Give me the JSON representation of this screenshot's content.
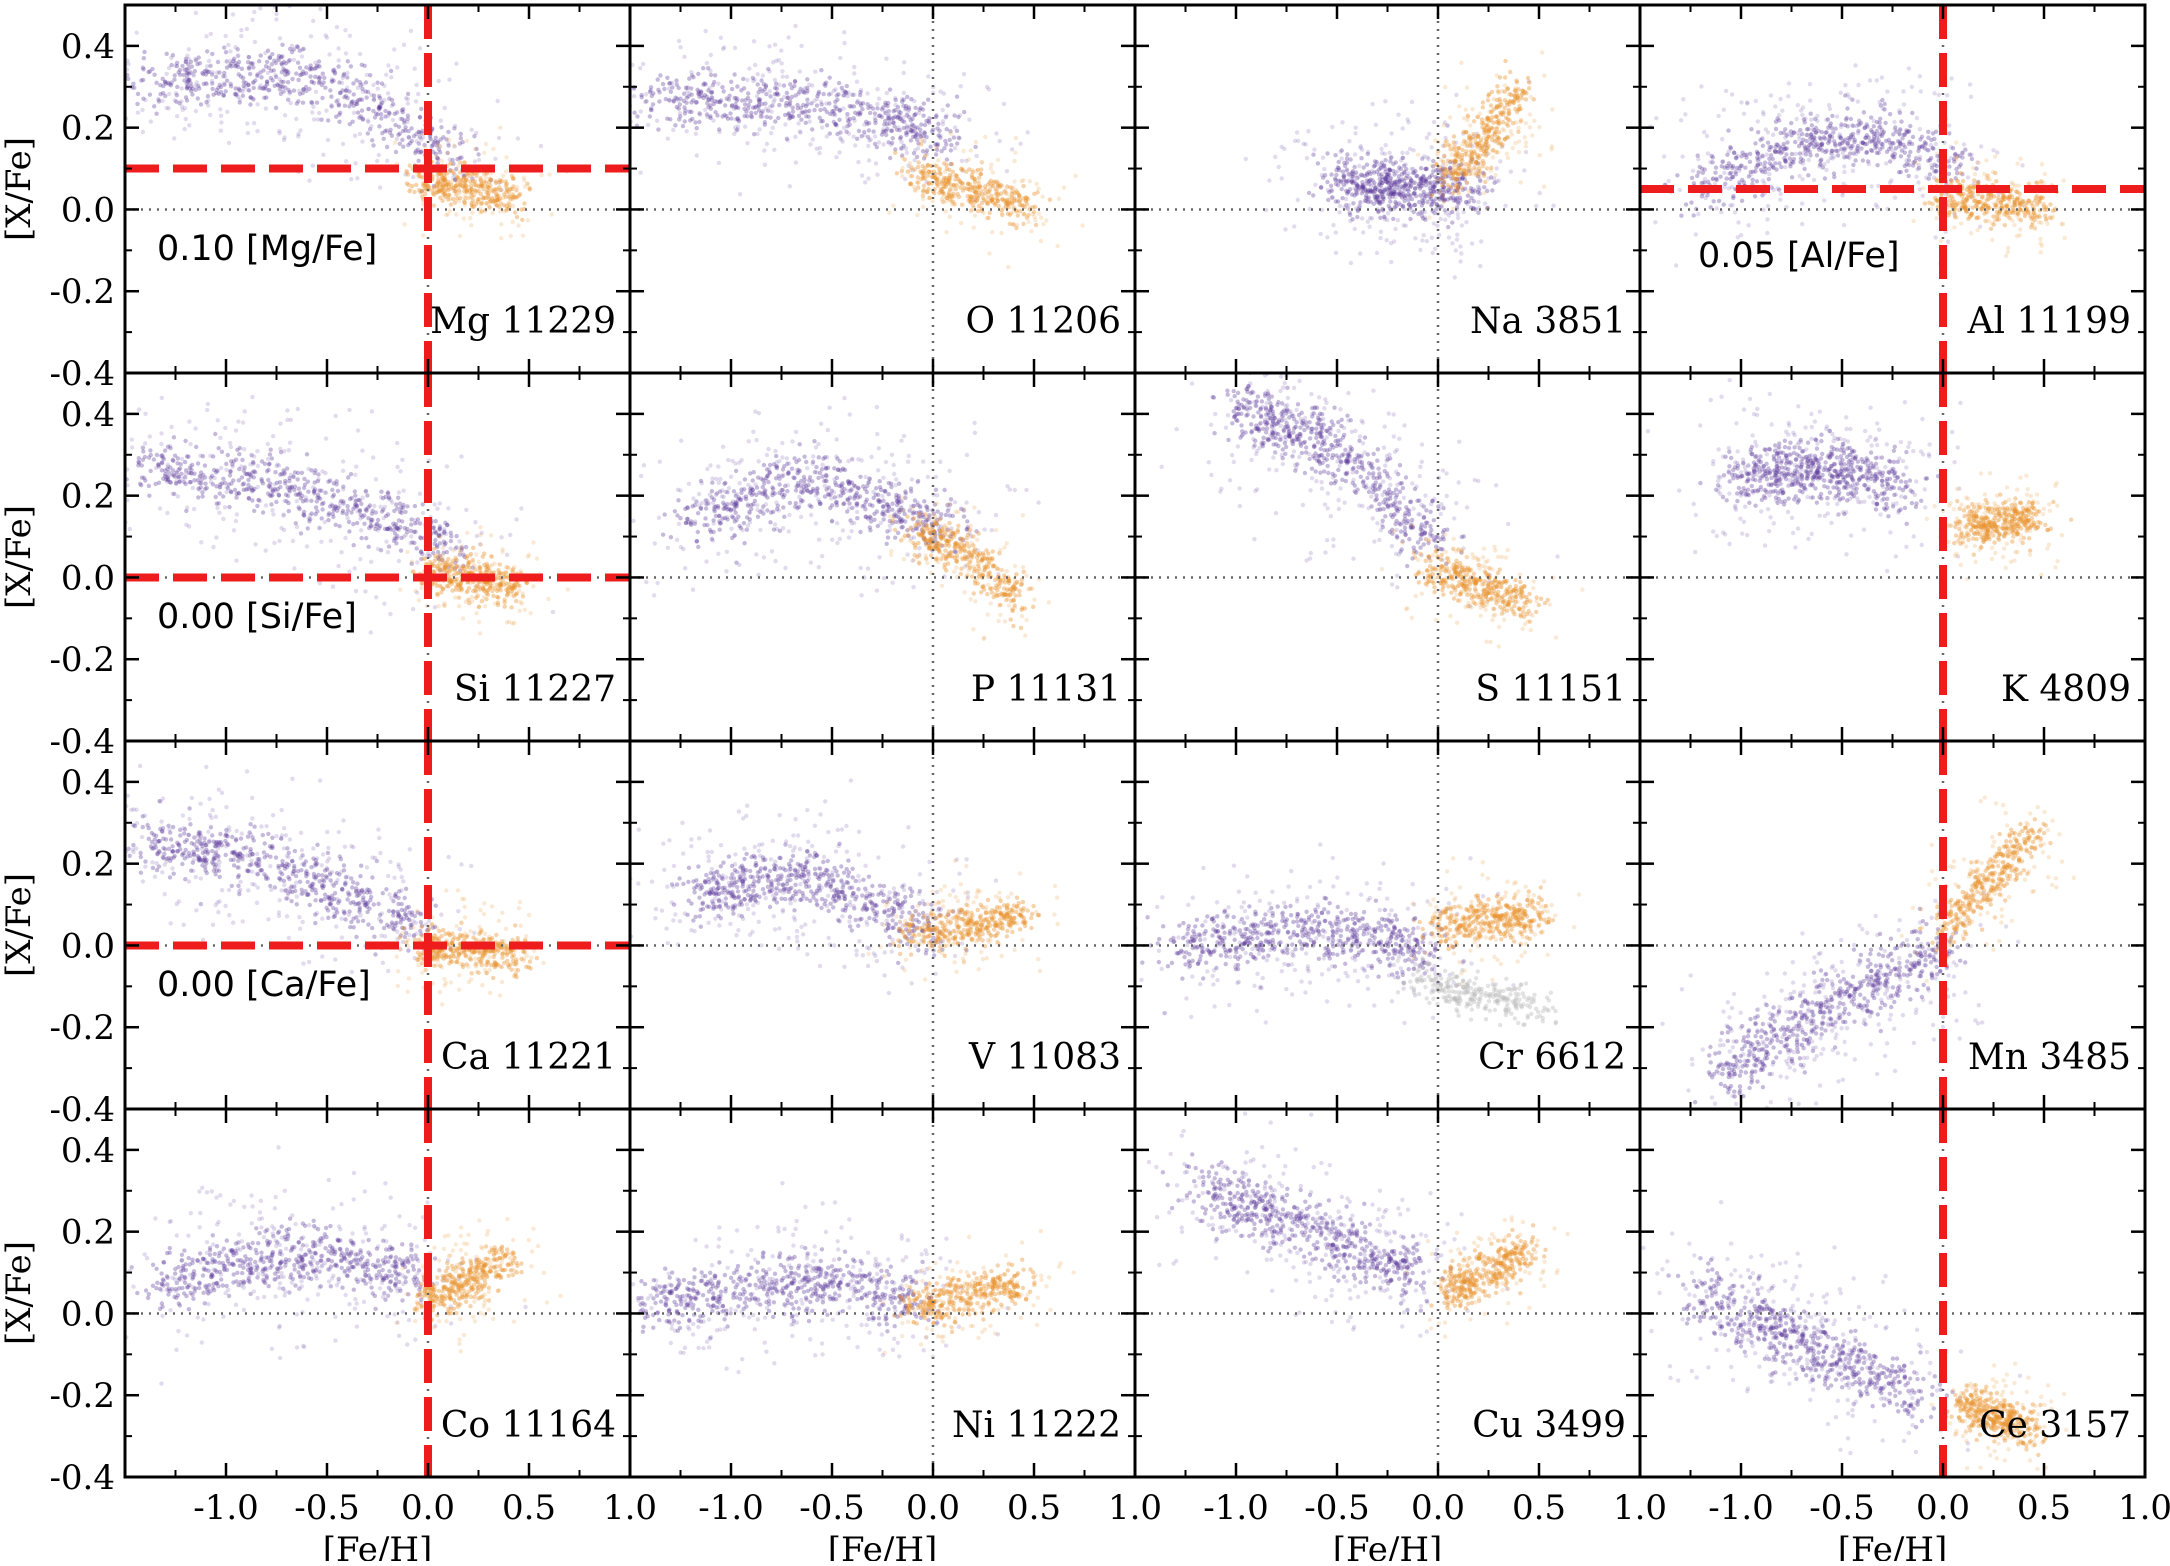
{
  "colors": {
    "high_alpha": "#5b3a9c",
    "low_alpha": "#e8902a",
    "cr_extra": "#b8b8b8",
    "cut_line": "#ee1c1c",
    "zero_line": "#666666"
  },
  "chart_data": {
    "type": "scatter",
    "layout": "4x4 grid of panels",
    "xlabel": "[Fe/H]",
    "ylabel": "[X/Fe]",
    "xlim": [
      -1.5,
      1.0
    ],
    "ylim": [
      -0.4,
      0.5
    ],
    "xticks": [
      -1.0,
      -0.5,
      0.0,
      0.5,
      1.0
    ],
    "xtick_labels": [
      "-1.0",
      "-0.5",
      "0.0",
      "0.5",
      "1.0"
    ],
    "yticks": [
      -0.4,
      -0.2,
      0.0,
      0.2,
      0.4
    ],
    "ytick_labels": [
      "-0.4",
      "-0.2",
      "0.0",
      "0.2",
      "0.4"
    ],
    "reference_lines": {
      "x": 0.0,
      "y": 0.0,
      "style": "dotted"
    },
    "panels": [
      {
        "label": "Mg 11229",
        "element": "Mg",
        "n": 11229,
        "cut_fe": 0.0,
        "cut_x": 0.1,
        "cut_text": "0.10 [Mg/Fe]",
        "high_alpha_trend": [
          [
            -1.4,
            0.3
          ],
          [
            -0.9,
            0.33
          ],
          [
            -0.6,
            0.33
          ],
          [
            -0.3,
            0.26
          ],
          [
            0.0,
            0.17
          ],
          [
            0.15,
            0.12
          ]
        ],
        "low_alpha_trend": [
          [
            -0.05,
            0.08
          ],
          [
            0.2,
            0.05
          ],
          [
            0.45,
            0.03
          ]
        ]
      },
      {
        "label": "O 11206",
        "element": "O",
        "n": 11206,
        "cut_fe": null,
        "cut_x": null,
        "cut_text": "",
        "high_alpha_trend": [
          [
            -1.4,
            0.28
          ],
          [
            -0.9,
            0.27
          ],
          [
            -0.55,
            0.26
          ],
          [
            -0.2,
            0.22
          ],
          [
            0.1,
            0.18
          ]
        ],
        "low_alpha_trend": [
          [
            -0.1,
            0.09
          ],
          [
            0.2,
            0.05
          ],
          [
            0.5,
            0.0
          ]
        ]
      },
      {
        "label": "Na 3851",
        "element": "Na",
        "n": 3851,
        "cut_fe": null,
        "cut_x": null,
        "cut_text": "",
        "high_alpha_trend": [
          [
            -0.5,
            0.07
          ],
          [
            -0.3,
            0.06
          ],
          [
            -0.05,
            0.05
          ],
          [
            0.15,
            0.06
          ]
        ],
        "low_alpha_trend": [
          [
            0.05,
            0.08
          ],
          [
            0.25,
            0.18
          ],
          [
            0.4,
            0.3
          ]
        ]
      },
      {
        "label": "Al 11199",
        "element": "Al",
        "n": 11199,
        "cut_fe": 0.0,
        "cut_x": 0.05,
        "cut_text": "0.05 [Al/Fe]",
        "high_alpha_trend": [
          [
            -1.2,
            0.06
          ],
          [
            -0.8,
            0.14
          ],
          [
            -0.5,
            0.18
          ],
          [
            -0.2,
            0.17
          ],
          [
            0.05,
            0.1
          ]
        ],
        "low_alpha_trend": [
          [
            0.0,
            0.03
          ],
          [
            0.25,
            0.02
          ],
          [
            0.5,
            0.01
          ]
        ]
      },
      {
        "label": "Si 11227",
        "element": "Si",
        "n": 11227,
        "cut_fe": 0.0,
        "cut_x": 0.0,
        "cut_text": "0.00 [Si/Fe]",
        "high_alpha_trend": [
          [
            -1.4,
            0.27
          ],
          [
            -0.9,
            0.24
          ],
          [
            -0.6,
            0.21
          ],
          [
            -0.3,
            0.16
          ],
          [
            0.0,
            0.1
          ],
          [
            0.15,
            0.06
          ]
        ],
        "low_alpha_trend": [
          [
            0.0,
            0.01
          ],
          [
            0.25,
            0.0
          ],
          [
            0.45,
            -0.02
          ]
        ]
      },
      {
        "label": "P 11131",
        "element": "P",
        "n": 11131,
        "cut_fe": null,
        "cut_x": null,
        "cut_text": "",
        "high_alpha_trend": [
          [
            -1.2,
            0.12
          ],
          [
            -0.8,
            0.22
          ],
          [
            -0.5,
            0.23
          ],
          [
            -0.2,
            0.17
          ],
          [
            0.1,
            0.12
          ]
        ],
        "low_alpha_trend": [
          [
            -0.1,
            0.12
          ],
          [
            0.2,
            0.05
          ],
          [
            0.45,
            -0.07
          ]
        ]
      },
      {
        "label": "S 11151",
        "element": "S",
        "n": 11151,
        "cut_fe": null,
        "cut_x": null,
        "cut_text": "",
        "high_alpha_trend": [
          [
            -1.0,
            0.42
          ],
          [
            -0.7,
            0.36
          ],
          [
            -0.45,
            0.29
          ],
          [
            -0.2,
            0.18
          ],
          [
            0.0,
            0.08
          ]
        ],
        "low_alpha_trend": [
          [
            -0.05,
            0.03
          ],
          [
            0.2,
            -0.02
          ],
          [
            0.45,
            -0.06
          ]
        ]
      },
      {
        "label": "K 4809",
        "element": "K",
        "n": 4809,
        "cut_fe": 0.0,
        "cut_x": null,
        "cut_text": "",
        "high_alpha_trend": [
          [
            -1.0,
            0.24
          ],
          [
            -0.7,
            0.26
          ],
          [
            -0.45,
            0.26
          ],
          [
            -0.2,
            0.22
          ]
        ],
        "low_alpha_trend": [
          [
            0.1,
            0.12
          ],
          [
            0.3,
            0.14
          ],
          [
            0.45,
            0.15
          ]
        ]
      },
      {
        "label": "Ca 11221",
        "element": "Ca",
        "n": 11221,
        "cut_fe": 0.0,
        "cut_x": 0.0,
        "cut_text": "0.00 [Ca/Fe]",
        "high_alpha_trend": [
          [
            -1.4,
            0.25
          ],
          [
            -0.9,
            0.22
          ],
          [
            -0.6,
            0.17
          ],
          [
            -0.3,
            0.1
          ],
          [
            0.0,
            0.04
          ]
        ],
        "low_alpha_trend": [
          [
            -0.05,
            0.0
          ],
          [
            0.2,
            -0.01
          ],
          [
            0.45,
            -0.02
          ]
        ]
      },
      {
        "label": "V 11083",
        "element": "V",
        "n": 11083,
        "cut_fe": null,
        "cut_x": null,
        "cut_text": "",
        "high_alpha_trend": [
          [
            -1.2,
            0.12
          ],
          [
            -0.8,
            0.17
          ],
          [
            -0.55,
            0.16
          ],
          [
            -0.3,
            0.1
          ],
          [
            0.0,
            0.04
          ]
        ],
        "low_alpha_trend": [
          [
            -0.1,
            0.03
          ],
          [
            0.2,
            0.05
          ],
          [
            0.45,
            0.08
          ]
        ]
      },
      {
        "label": "Cr 6612",
        "element": "Cr",
        "n": 6612,
        "cut_fe": null,
        "cut_x": null,
        "cut_text": "",
        "high_alpha_trend": [
          [
            -1.3,
            0.0
          ],
          [
            -0.9,
            0.03
          ],
          [
            -0.6,
            0.04
          ],
          [
            -0.3,
            0.02
          ],
          [
            0.0,
            -0.02
          ]
        ],
        "low_alpha_trend": [
          [
            0.0,
            0.04
          ],
          [
            0.25,
            0.07
          ],
          [
            0.5,
            0.07
          ]
        ],
        "extra_trend": [
          [
            -0.1,
            -0.08
          ],
          [
            0.2,
            -0.12
          ],
          [
            0.5,
            -0.15
          ]
        ]
      },
      {
        "label": "Mn 3485",
        "element": "Mn",
        "n": 3485,
        "cut_fe": 0.0,
        "cut_x": null,
        "cut_text": "",
        "high_alpha_trend": [
          [
            -1.1,
            -0.32
          ],
          [
            -0.8,
            -0.22
          ],
          [
            -0.5,
            -0.14
          ],
          [
            -0.2,
            -0.06
          ],
          [
            0.0,
            0.0
          ]
        ],
        "low_alpha_trend": [
          [
            0.0,
            0.04
          ],
          [
            0.2,
            0.14
          ],
          [
            0.45,
            0.28
          ]
        ]
      },
      {
        "label": "Co 11164",
        "element": "Co",
        "n": 11164,
        "cut_fe": 0.0,
        "cut_x": null,
        "cut_text": "",
        "high_alpha_trend": [
          [
            -1.3,
            0.07
          ],
          [
            -0.9,
            0.12
          ],
          [
            -0.6,
            0.15
          ],
          [
            -0.3,
            0.13
          ],
          [
            -0.05,
            0.08
          ]
        ],
        "low_alpha_trend": [
          [
            0.0,
            0.03
          ],
          [
            0.2,
            0.08
          ],
          [
            0.4,
            0.14
          ]
        ]
      },
      {
        "label": "Ni 11222",
        "element": "Ni",
        "n": 11222,
        "cut_fe": null,
        "cut_x": null,
        "cut_text": "",
        "high_alpha_trend": [
          [
            -1.4,
            0.02
          ],
          [
            -1.0,
            0.05
          ],
          [
            -0.6,
            0.08
          ],
          [
            -0.3,
            0.06
          ],
          [
            -0.05,
            0.02
          ]
        ],
        "low_alpha_trend": [
          [
            -0.1,
            0.01
          ],
          [
            0.15,
            0.04
          ],
          [
            0.45,
            0.08
          ]
        ]
      },
      {
        "label": "Cu 3499",
        "element": "Cu",
        "n": 3499,
        "cut_fe": null,
        "cut_x": null,
        "cut_text": "",
        "high_alpha_trend": [
          [
            -1.2,
            0.32
          ],
          [
            -0.9,
            0.25
          ],
          [
            -0.6,
            0.2
          ],
          [
            -0.3,
            0.13
          ],
          [
            -0.05,
            0.09
          ]
        ],
        "low_alpha_trend": [
          [
            0.05,
            0.05
          ],
          [
            0.25,
            0.1
          ],
          [
            0.45,
            0.16
          ]
        ]
      },
      {
        "label": "Ce 3157",
        "element": "Ce",
        "n": 3157,
        "cut_fe": 0.0,
        "cut_x": null,
        "cut_text": "",
        "high_alpha_trend": [
          [
            -1.2,
            0.05
          ],
          [
            -0.9,
            -0.02
          ],
          [
            -0.6,
            -0.1
          ],
          [
            -0.35,
            -0.15
          ],
          [
            -0.1,
            -0.2
          ]
        ],
        "low_alpha_trend": [
          [
            0.1,
            -0.22
          ],
          [
            0.3,
            -0.26
          ],
          [
            0.45,
            -0.28
          ]
        ]
      }
    ]
  }
}
